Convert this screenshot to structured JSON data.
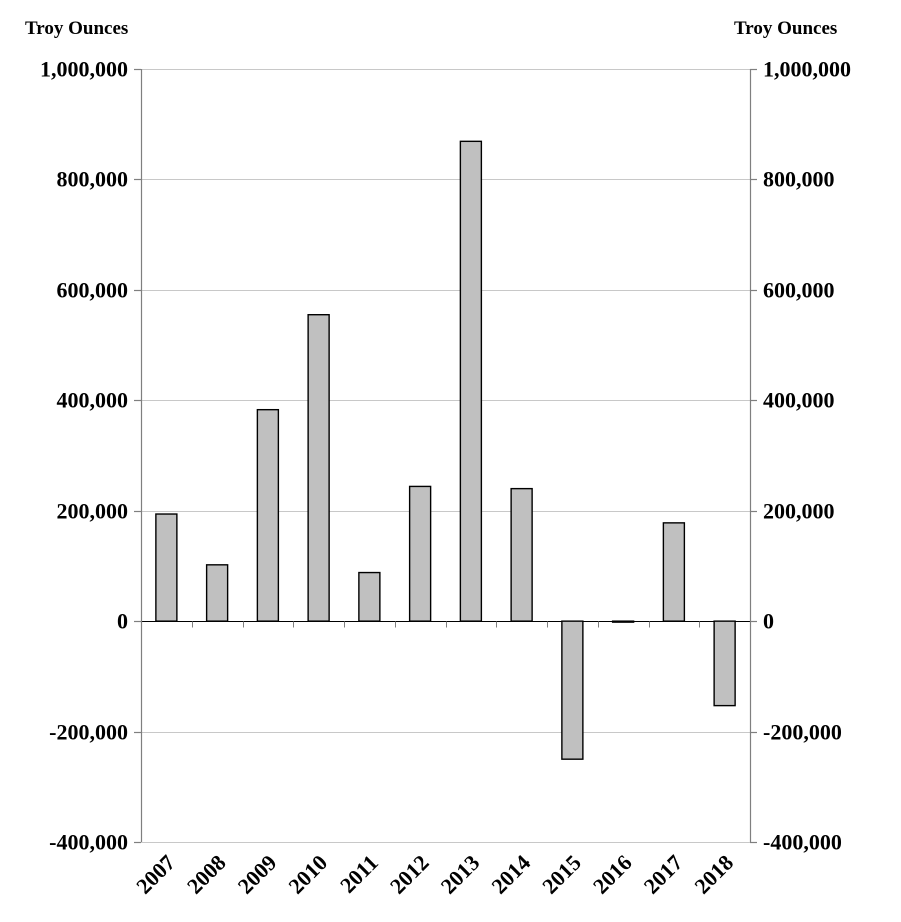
{
  "chart_data": {
    "type": "bar",
    "ylabel_left": "Troy Ounces",
    "ylabel_right": "Troy Ounces",
    "categories": [
      "2007",
      "2008",
      "2009",
      "2010",
      "2011",
      "2012",
      "2013",
      "2014",
      "2015",
      "2016",
      "2017",
      "2018"
    ],
    "values": [
      194000,
      102000,
      383000,
      555000,
      88000,
      244000,
      869000,
      240000,
      -250000,
      -1000,
      178000,
      -153000
    ],
    "ylim": [
      -400000,
      1000000
    ],
    "yticks": [
      -400000,
      -200000,
      0,
      200000,
      400000,
      600000,
      800000,
      1000000
    ],
    "ytick_labels": [
      "-400,000",
      "-200,000",
      "0",
      "200,000",
      "400,000",
      "600,000",
      "800,000",
      "1,000,000"
    ],
    "grid": true,
    "colors": {
      "bar_fill": "#c0c0c0",
      "bar_stroke": "#000000",
      "grid": "#c8c8c8",
      "axis": "#7f7f7f"
    }
  }
}
